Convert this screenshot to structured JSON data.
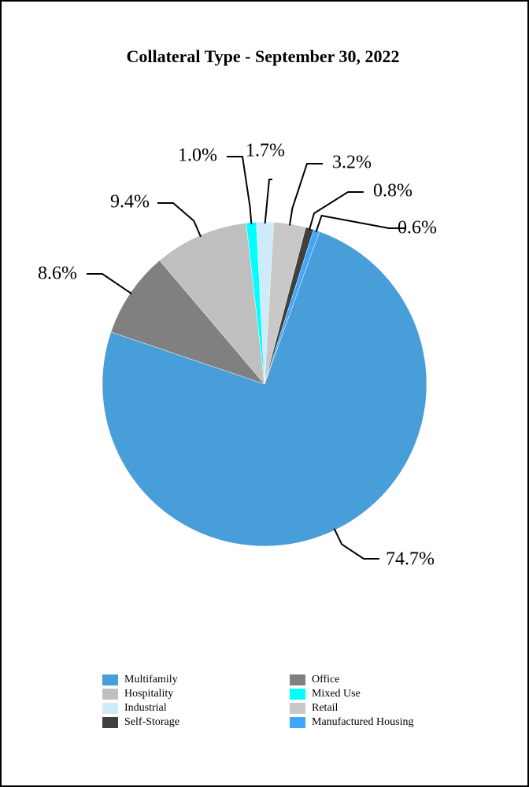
{
  "chart_data": {
    "type": "pie",
    "title": "Collateral Type - September 30, 2022",
    "categories": [
      "Multifamily",
      "Office",
      "Hospitality",
      "Mixed Use",
      "Industrial",
      "Retail",
      "Self-Storage",
      "Manufactured Housing"
    ],
    "values": [
      74.7,
      8.6,
      9.4,
      1.0,
      1.7,
      3.2,
      0.8,
      0.6
    ],
    "value_labels": [
      "74.7%",
      "8.6%",
      "9.4%",
      "1.0%",
      "1.7%",
      "3.2%",
      "0.8%",
      "0.6%"
    ],
    "colors": [
      "#479ed9",
      "#808080",
      "#bfbfbf",
      "#00ffff",
      "#cfeaf9",
      "#c8c8c8",
      "#404040",
      "#3ea6ff"
    ]
  }
}
